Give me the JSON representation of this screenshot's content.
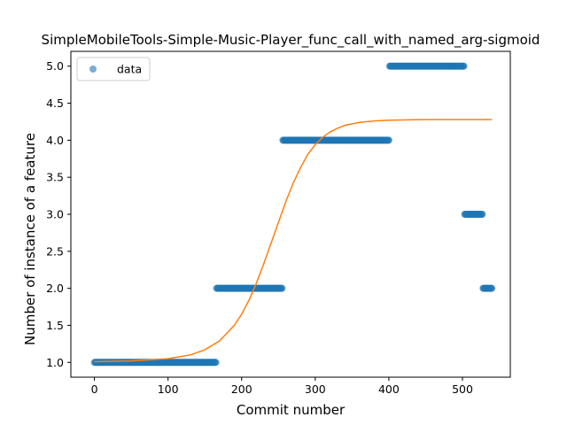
{
  "chart_data": {
    "type": "scatter",
    "title": "SimpleMobileTools-Simple-Music-Player_func_call_with_named_arg-sigmoid",
    "xlabel": "Commit number",
    "ylabel": "Number of instance of a feature",
    "xlim": [
      -32,
      565
    ],
    "ylim": [
      0.8,
      5.2
    ],
    "x_ticks": [
      0,
      100,
      200,
      300,
      400,
      500
    ],
    "x_tick_labels": [
      "0",
      "100",
      "200",
      "300",
      "400",
      "500"
    ],
    "y_ticks": [
      1.0,
      1.5,
      2.0,
      2.5,
      3.0,
      3.5,
      4.0,
      4.5,
      5.0
    ],
    "y_tick_labels": [
      "1.0",
      "1.5",
      "2.0",
      "2.5",
      "3.0",
      "3.5",
      "4.0",
      "4.5",
      "5.0"
    ],
    "legend": {
      "placement": "top-left",
      "entries": [
        "data"
      ]
    },
    "grid": false,
    "series": [
      {
        "name": "data",
        "kind": "points",
        "color": "#1f77b4",
        "segments": [
          {
            "x_start": 0,
            "x_end": 165,
            "y": 1.0
          },
          {
            "x_start": 166,
            "x_end": 255,
            "y": 2.0
          },
          {
            "x_start": 256,
            "x_end": 400,
            "y": 4.0
          },
          {
            "x_start": 401,
            "x_end": 502,
            "y": 5.0
          },
          {
            "x_start": 503,
            "x_end": 527,
            "y": 3.0
          },
          {
            "x_start": 528,
            "x_end": 540,
            "y": 2.0
          }
        ]
      },
      {
        "kind": "line",
        "color": "#ff7f0e",
        "x": [
          0,
          50,
          100,
          130,
          150,
          170,
          190,
          200,
          210,
          220,
          230,
          240,
          250,
          260,
          270,
          280,
          290,
          300,
          310,
          320,
          330,
          340,
          360,
          380,
          400,
          450,
          500,
          540
        ],
        "y": [
          1.01,
          1.02,
          1.05,
          1.1,
          1.17,
          1.29,
          1.5,
          1.65,
          1.84,
          2.07,
          2.33,
          2.61,
          2.89,
          3.17,
          3.42,
          3.63,
          3.81,
          3.94,
          4.04,
          4.11,
          4.16,
          4.2,
          4.24,
          4.26,
          4.27,
          4.28,
          4.28,
          4.28
        ]
      }
    ]
  }
}
